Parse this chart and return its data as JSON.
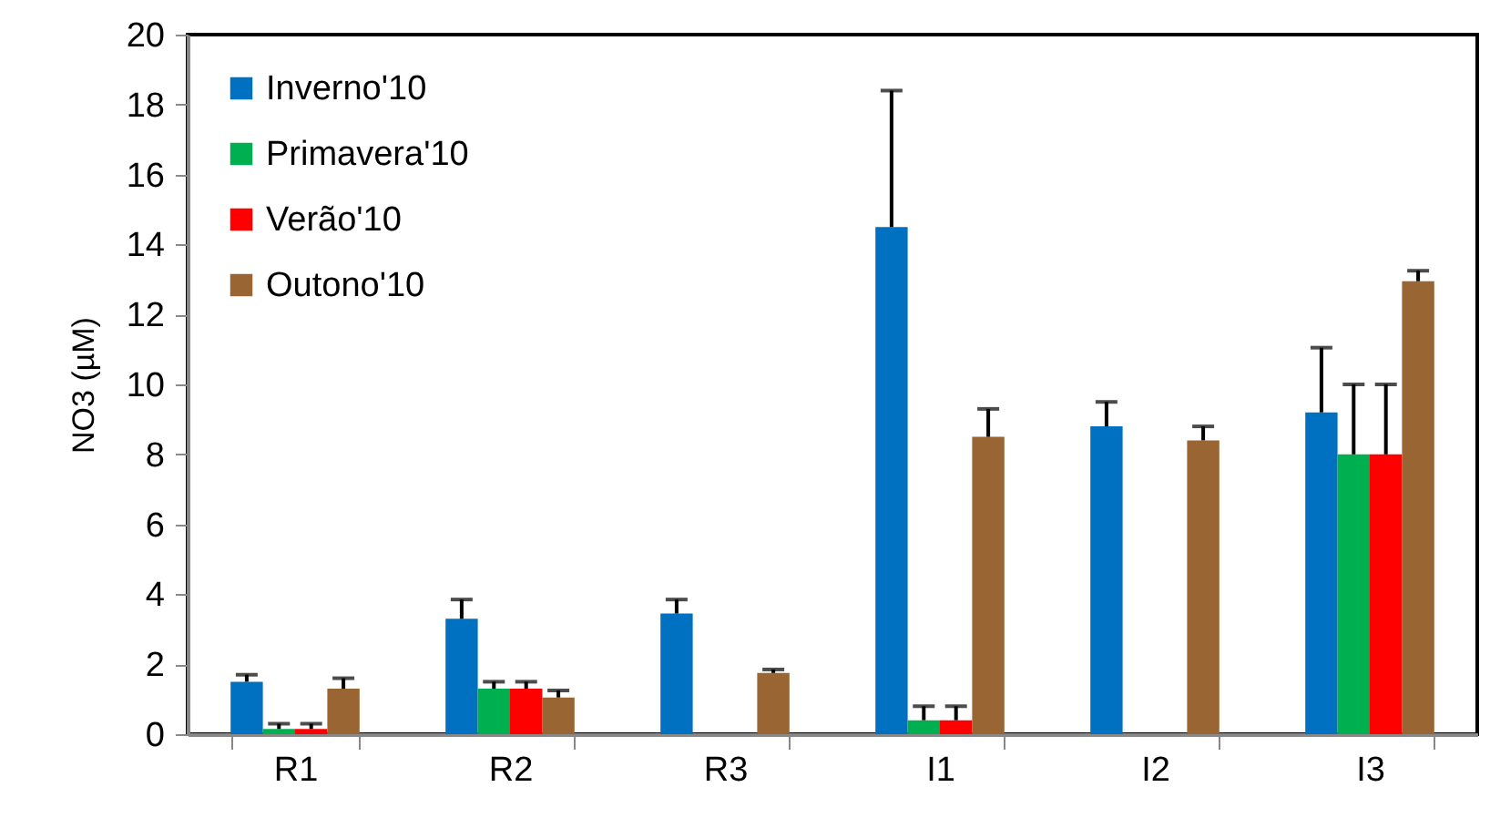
{
  "chart_data": {
    "type": "bar",
    "ylabel": "NO3 (µM)",
    "categories": [
      "R1",
      "R2",
      "R3",
      "I1",
      "I2",
      "I3"
    ],
    "series": [
      {
        "name": "Inverno'10",
        "color": "#0070c0",
        "values": [
          1.5,
          3.3,
          3.45,
          14.5,
          8.8,
          9.2
        ],
        "errors": [
          [
            1.5,
            1.7
          ],
          [
            3.3,
            3.85
          ],
          [
            3.45,
            3.85
          ],
          [
            14.5,
            18.4
          ],
          [
            8.8,
            9.5
          ],
          [
            9.2,
            11.05
          ]
        ]
      },
      {
        "name": "Primavera'10",
        "color": "#00b050",
        "values": [
          0.15,
          1.3,
          0,
          0.4,
          0,
          8.0
        ],
        "errors": [
          [
            0.15,
            0.3
          ],
          [
            1.3,
            1.5
          ],
          null,
          [
            0.4,
            0.8
          ],
          null,
          [
            8.0,
            10.0
          ]
        ]
      },
      {
        "name": "Verão'10",
        "color": "#ff0000",
        "values": [
          0.15,
          1.3,
          0,
          0.4,
          0,
          8.0
        ],
        "errors": [
          [
            0.15,
            0.3
          ],
          [
            1.3,
            1.5
          ],
          null,
          [
            0.4,
            0.8
          ],
          null,
          [
            8.0,
            10.0
          ]
        ]
      },
      {
        "name": "Outono'10",
        "color": "#996633",
        "values": [
          1.3,
          1.05,
          1.75,
          8.5,
          8.4,
          12.95
        ],
        "errors": [
          [
            1.3,
            1.6
          ],
          [
            1.05,
            1.25
          ],
          [
            1.75,
            1.85
          ],
          [
            8.5,
            9.3
          ],
          [
            8.4,
            8.8
          ],
          [
            12.95,
            13.25
          ]
        ]
      }
    ],
    "ylim": [
      0,
      20
    ],
    "yticks": [
      0,
      2,
      4,
      6,
      8,
      10,
      12,
      14,
      16,
      18,
      20
    ],
    "grid": false,
    "legend": "top left"
  }
}
